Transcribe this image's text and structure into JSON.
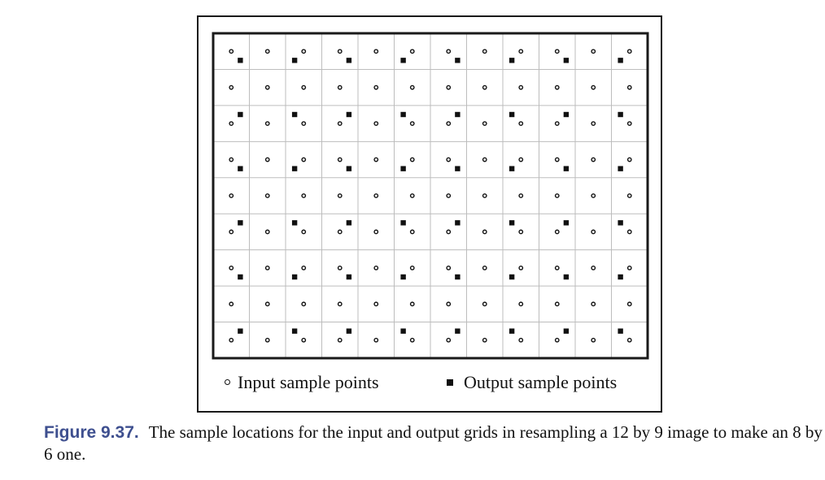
{
  "diagram": {
    "input_grid": {
      "columns": 12,
      "rows": 9
    },
    "output_grid": {
      "columns": 8,
      "rows": 6
    }
  },
  "legend": {
    "input": "Input sample points",
    "output": "Output sample points"
  },
  "caption": {
    "label": "Figure 9.37.",
    "text": "The sample locations for the input and output grids in resampling a 12 by 9 image to make an 8 by 6 one."
  },
  "colors": {
    "caption_label": "#3e4f8f",
    "grid_lines": "#bdbdbd",
    "marks": "#111111"
  }
}
